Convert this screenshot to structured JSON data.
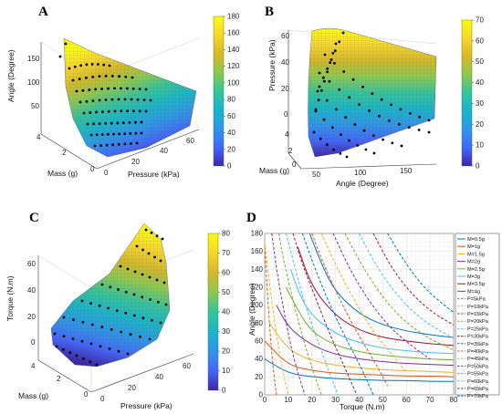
{
  "colormap": [
    "#3e26a8",
    "#4367fd",
    "#2e96e8",
    "#19b5c9",
    "#35c49a",
    "#8cc94f",
    "#d4b927",
    "#f7d72b",
    "#f9fb0e"
  ],
  "chart_data": [
    {
      "panel": "A",
      "type": "surface3d",
      "xlabel": "Pressure (kPa)",
      "ylabel": "Mass (g)",
      "zlabel": "Angle (Degree)",
      "x_ticks": [
        "0",
        "20",
        "40",
        "60"
      ],
      "y_ticks": [
        "0",
        "2",
        "4"
      ],
      "z_ticks": [
        "50",
        "100",
        "150"
      ],
      "colorbar_ticks": [
        "0",
        "20",
        "40",
        "60",
        "80",
        "100",
        "120",
        "140",
        "160",
        "180"
      ],
      "clim": [
        0,
        180
      ]
    },
    {
      "panel": "B",
      "type": "surface3d",
      "xlabel": "Angle (Degree)",
      "ylabel": "Mass (g)",
      "zlabel": "Pressure (kPa)",
      "x_ticks": [
        "50",
        "100",
        "150"
      ],
      "y_ticks": [
        "0",
        "2",
        "4"
      ],
      "z_ticks": [
        "0",
        "20",
        "40",
        "60"
      ],
      "colorbar_ticks": [
        "0",
        "10",
        "20",
        "30",
        "40",
        "50",
        "60",
        "70"
      ],
      "clim": [
        0,
        70
      ]
    },
    {
      "panel": "C",
      "type": "surface3d",
      "xlabel": "Pressure (kPa)",
      "ylabel": "Mass (g)",
      "zlabel": "Torque (N.m)",
      "x_ticks": [
        "0",
        "20",
        "40",
        "60"
      ],
      "y_ticks": [
        "0",
        "2",
        "4"
      ],
      "z_ticks": [
        "0",
        "20",
        "40",
        "60"
      ],
      "colorbar_ticks": [
        "0",
        "10",
        "20",
        "30",
        "40",
        "50",
        "60",
        "70",
        "80"
      ],
      "clim": [
        0,
        80
      ]
    },
    {
      "panel": "D",
      "type": "line",
      "xlabel": "Torque (N.m)",
      "ylabel": "Angle (Degree)",
      "xlim": [
        0,
        80
      ],
      "ylim": [
        0,
        180
      ],
      "x_ticks": [
        "0",
        "10",
        "20",
        "30",
        "40",
        "50",
        "60",
        "70",
        "80"
      ],
      "y_ticks": [
        "0",
        "20",
        "40",
        "60",
        "80",
        "100",
        "120",
        "140",
        "160",
        "180"
      ],
      "grid": true,
      "legend_position": "right",
      "series": [
        {
          "name": "M=0.5g",
          "style": "solid",
          "color": "#0072bd",
          "x": [
            0,
            10,
            20,
            30,
            40,
            50,
            60,
            70,
            80
          ],
          "y": [
            40,
            24,
            20,
            18,
            17,
            16,
            16,
            15,
            15
          ]
        },
        {
          "name": "M=1g",
          "style": "solid",
          "color": "#d95319",
          "x": [
            0,
            10,
            20,
            30,
            40,
            50,
            60,
            70,
            80
          ],
          "y": [
            60,
            33,
            27,
            24,
            23,
            22,
            21,
            21,
            20
          ]
        },
        {
          "name": "M=1.5g",
          "style": "solid",
          "color": "#edb120",
          "x": [
            2,
            10,
            20,
            30,
            40,
            50,
            60,
            70,
            80
          ],
          "y": [
            80,
            50,
            38,
            33,
            30,
            28,
            27,
            26,
            25
          ]
        },
        {
          "name": "M=2g",
          "style": "solid",
          "color": "#7e2f8e",
          "x": [
            5,
            10,
            20,
            30,
            40,
            50,
            60,
            70,
            80
          ],
          "y": [
            100,
            75,
            55,
            45,
            40,
            37,
            35,
            34,
            33
          ]
        },
        {
          "name": "M=2.5g",
          "style": "solid",
          "color": "#77ac30",
          "x": [
            9,
            15,
            20,
            30,
            40,
            50,
            60,
            70,
            80
          ],
          "y": [
            120,
            90,
            70,
            55,
            48,
            44,
            42,
            40,
            39
          ]
        },
        {
          "name": "M=3g",
          "style": "solid",
          "color": "#4dbeee",
          "x": [
            11,
            15,
            20,
            30,
            40,
            50,
            60,
            70,
            80
          ],
          "y": [
            140,
            110,
            88,
            68,
            58,
            52,
            49,
            47,
            46
          ]
        },
        {
          "name": "M=3.5g",
          "style": "solid",
          "color": "#a2142f",
          "x": [
            14,
            20,
            30,
            40,
            50,
            60,
            70,
            80
          ],
          "y": [
            165,
            120,
            88,
            72,
            64,
            60,
            57,
            55
          ]
        },
        {
          "name": "M=4g",
          "style": "solid",
          "color": "#0072bd",
          "x": [
            19,
            25,
            30,
            40,
            50,
            60,
            70,
            80
          ],
          "y": [
            180,
            140,
            115,
            90,
            78,
            71,
            67,
            64
          ]
        },
        {
          "name": "P=5kPa",
          "style": "dashed",
          "color": "#d95319",
          "x": [
            0,
            1,
            2,
            3,
            4,
            5
          ],
          "y": [
            165,
            120,
            80,
            45,
            20,
            0
          ]
        },
        {
          "name": "P=10kPa",
          "style": "dashed",
          "color": "#edb120",
          "x": [
            0,
            2,
            4,
            6,
            8,
            10
          ],
          "y": [
            170,
            125,
            85,
            50,
            22,
            0
          ]
        },
        {
          "name": "P=15kPa",
          "style": "dashed",
          "color": "#7e2f8e",
          "x": [
            3,
            5,
            8,
            11,
            14,
            17
          ],
          "y": [
            180,
            140,
            95,
            55,
            25,
            0
          ]
        },
        {
          "name": "P=20kPa",
          "style": "dashed",
          "color": "#77ac30",
          "x": [
            6,
            8,
            12,
            16,
            20,
            24
          ],
          "y": [
            180,
            150,
            105,
            65,
            30,
            0
          ]
        },
        {
          "name": "P=25kPa",
          "style": "dashed",
          "color": "#4dbeee",
          "x": [
            9,
            12,
            16,
            21,
            26,
            31
          ],
          "y": [
            180,
            150,
            110,
            70,
            35,
            0
          ]
        },
        {
          "name": "P=30kPa",
          "style": "dashed",
          "color": "#a2142f",
          "x": [
            12,
            16,
            22,
            28,
            34,
            39
          ],
          "y": [
            180,
            145,
            105,
            65,
            30,
            0
          ]
        },
        {
          "name": "P=35kPa",
          "style": "dashed",
          "color": "#0072bd",
          "x": [
            16,
            20,
            26,
            33,
            40,
            46
          ],
          "y": [
            180,
            150,
            110,
            70,
            35,
            0
          ]
        },
        {
          "name": "P=40kPa",
          "style": "dashed",
          "color": "#d95319",
          "x": [
            20,
            25,
            32,
            40,
            47,
            52
          ],
          "y": [
            180,
            145,
            105,
            65,
            35,
            10
          ]
        },
        {
          "name": "P=45kPa",
          "style": "dashed",
          "color": "#edb120",
          "x": [
            24,
            30,
            38,
            46,
            54,
            60
          ],
          "y": [
            180,
            145,
            105,
            70,
            45,
            25
          ]
        },
        {
          "name": "P=50kPa",
          "style": "dashed",
          "color": "#7e2f8e",
          "x": [
            29,
            36,
            44,
            53,
            62,
            70
          ],
          "y": [
            180,
            140,
            105,
            75,
            55,
            40
          ]
        },
        {
          "name": "P=55kPa",
          "style": "dashed",
          "color": "#77ac30",
          "x": [
            34,
            42,
            51,
            60,
            70,
            80
          ],
          "y": [
            180,
            140,
            105,
            80,
            62,
            50
          ]
        },
        {
          "name": "P=60kPa",
          "style": "dashed",
          "color": "#4dbeee",
          "x": [
            40,
            48,
            57,
            66,
            75,
            80
          ],
          "y": [
            180,
            140,
            108,
            85,
            70,
            64
          ]
        },
        {
          "name": "P=65kPa",
          "style": "dashed",
          "color": "#a2142f",
          "x": [
            46,
            54,
            63,
            72,
            80
          ],
          "y": [
            180,
            140,
            110,
            90,
            78
          ]
        },
        {
          "name": "P=70kPa",
          "style": "dashed",
          "color": "#0072bd",
          "x": [
            52,
            60,
            68,
            76,
            80
          ],
          "y": [
            180,
            145,
            118,
            100,
            92
          ]
        }
      ]
    }
  ]
}
